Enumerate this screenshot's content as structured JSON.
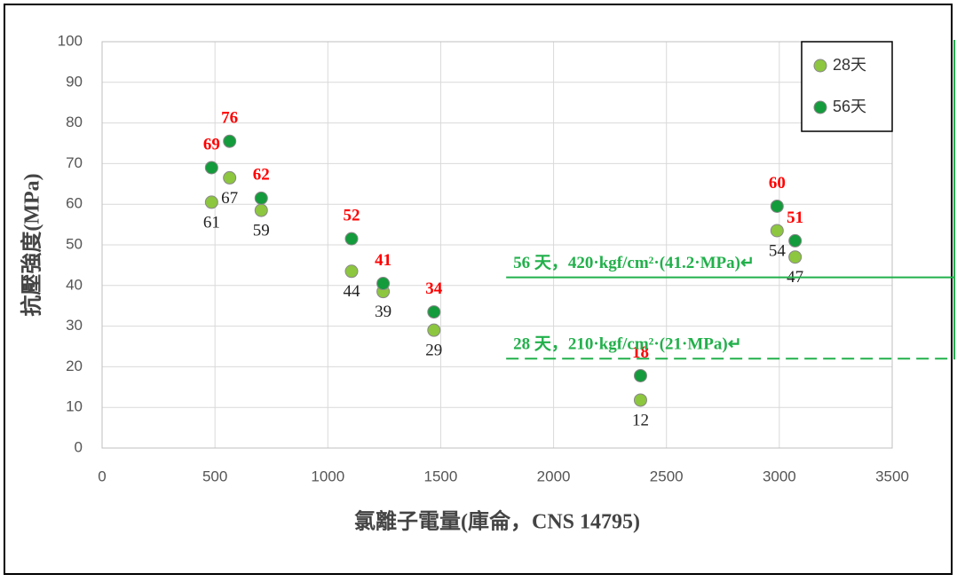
{
  "chart_data": {
    "type": "scatter",
    "xlabel": "氯離子電量(庫侖，CNS 14795)",
    "ylabel": "抗壓強度(MPa)",
    "xlim": [
      0,
      3500
    ],
    "xticks": [
      0,
      500,
      1000,
      1500,
      2000,
      2500,
      3000,
      3500
    ],
    "ylim": [
      0,
      100
    ],
    "yticks": [
      0,
      10,
      20,
      30,
      40,
      50,
      60,
      70,
      80,
      90,
      100
    ],
    "grid": true,
    "legend": "upper right",
    "series": [
      {
        "name": "28天",
        "color": "#8dc63f",
        "label_color": "#222222",
        "x": [
          485,
          565,
          705,
          1105,
          1245,
          1470,
          2385,
          2990,
          3070
        ],
        "values": [
          60.5,
          66.5,
          58.5,
          43.5,
          38.5,
          29,
          11.8,
          53.5,
          47
        ],
        "value_labels": [
          "61",
          "67",
          "59",
          "44",
          "39",
          "29",
          "12",
          "54",
          "47"
        ]
      },
      {
        "name": "56天",
        "color": "#149b3c",
        "label_color": "#ff0000",
        "x": [
          485,
          565,
          705,
          1105,
          1245,
          1470,
          2385,
          2990,
          3070
        ],
        "values": [
          69,
          75.5,
          61.5,
          51.5,
          40.5,
          33.5,
          17.8,
          59.5,
          51
        ],
        "value_labels": [
          "69",
          "76",
          "62",
          "52",
          "41",
          "34",
          "18",
          "60",
          "51"
        ]
      }
    ],
    "annotations": [
      {
        "text": "56 天，420·kgf/cm²·(41.2·MPa)↵",
        "x": 1790,
        "y": 42,
        "style": "solid",
        "color": "#22b04b"
      },
      {
        "text": "28 天，210·kgf/cm²·(21·MPa)↵",
        "x": 1790,
        "y": 22,
        "style": "dashed",
        "color": "#22b04b"
      }
    ]
  }
}
